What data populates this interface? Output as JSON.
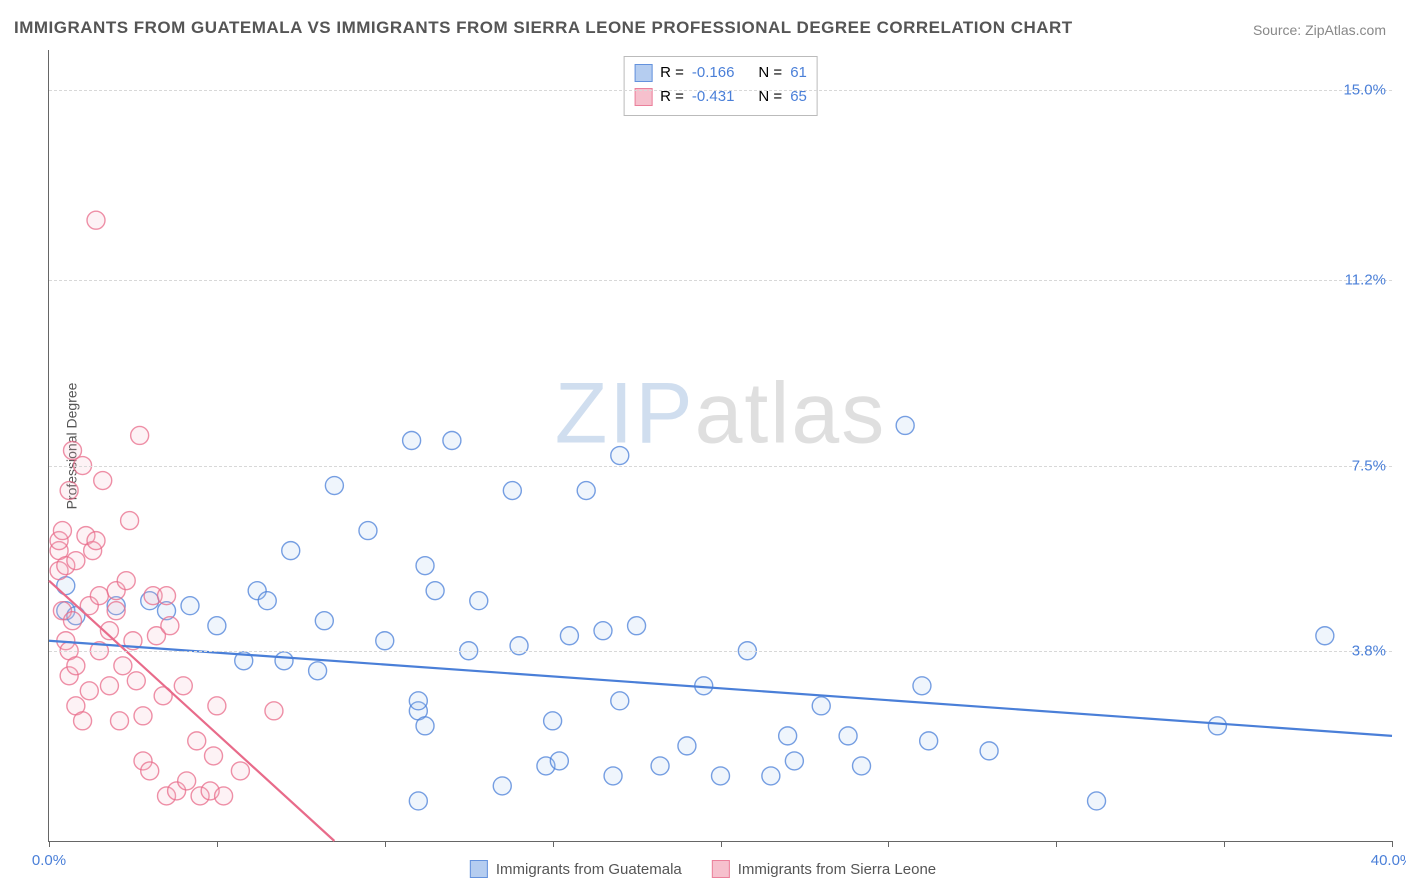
{
  "title": "IMMIGRANTS FROM GUATEMALA VS IMMIGRANTS FROM SIERRA LEONE PROFESSIONAL DEGREE CORRELATION CHART",
  "source": "Source: ZipAtlas.com",
  "ylabel": "Professional Degree",
  "watermark_zip": "ZIP",
  "watermark_atlas": "atlas",
  "chart": {
    "type": "scatter",
    "xlim": [
      0,
      40
    ],
    "ylim": [
      0,
      15.8
    ],
    "background_color": "#ffffff",
    "grid_color": "#d8d8d8",
    "axis_color": "#666666",
    "gridlines_y": [
      3.8,
      7.5,
      11.2,
      15.0
    ],
    "ytick_labels": [
      "3.8%",
      "7.5%",
      "11.2%",
      "15.0%"
    ],
    "ytick_color": "#4a7fd8",
    "xtick_positions": [
      0,
      5,
      10,
      15,
      20,
      25,
      30,
      35,
      40
    ],
    "xaxis_min_label": "0.0%",
    "xaxis_max_label": "40.0%",
    "xaxis_label_color": "#4a7fd8",
    "marker_radius": 9,
    "marker_stroke_width": 1.4,
    "marker_fill_opacity": 0.18,
    "trend_line_width": 2.2
  },
  "series": [
    {
      "name": "Immigrants from Guatemala",
      "color_stroke": "#4a7fd8",
      "color_fill": "#a9c5ee",
      "R": "-0.166",
      "N": "61",
      "trend": {
        "x1": 0,
        "y1": 4.0,
        "x2": 40,
        "y2": 2.1
      },
      "points": [
        [
          0.5,
          5.1
        ],
        [
          0.5,
          4.6
        ],
        [
          0.8,
          4.5
        ],
        [
          2.0,
          4.7
        ],
        [
          3.0,
          4.8
        ],
        [
          3.5,
          4.6
        ],
        [
          4.2,
          4.7
        ],
        [
          5.0,
          4.3
        ],
        [
          5.8,
          3.6
        ],
        [
          6.2,
          5.0
        ],
        [
          6.5,
          4.8
        ],
        [
          7.0,
          3.6
        ],
        [
          7.2,
          5.8
        ],
        [
          8.0,
          3.4
        ],
        [
          8.2,
          4.4
        ],
        [
          8.5,
          7.1
        ],
        [
          9.5,
          6.2
        ],
        [
          10.0,
          4.0
        ],
        [
          10.8,
          8.0
        ],
        [
          11.2,
          5.5
        ],
        [
          11.0,
          2.6
        ],
        [
          11.0,
          0.8
        ],
        [
          11.0,
          2.8
        ],
        [
          11.2,
          2.3
        ],
        [
          11.5,
          5.0
        ],
        [
          12.0,
          8.0
        ],
        [
          12.5,
          3.8
        ],
        [
          12.8,
          4.8
        ],
        [
          13.5,
          1.1
        ],
        [
          13.8,
          7.0
        ],
        [
          14.0,
          3.9
        ],
        [
          14.8,
          1.5
        ],
        [
          15.0,
          2.4
        ],
        [
          15.2,
          1.6
        ],
        [
          15.5,
          4.1
        ],
        [
          16.0,
          7.0
        ],
        [
          16.5,
          4.2
        ],
        [
          16.8,
          1.3
        ],
        [
          17.0,
          7.7
        ],
        [
          17.0,
          2.8
        ],
        [
          17.5,
          4.3
        ],
        [
          18.2,
          1.5
        ],
        [
          19.0,
          1.9
        ],
        [
          19.5,
          3.1
        ],
        [
          20.0,
          1.3
        ],
        [
          20.8,
          3.8
        ],
        [
          21.5,
          1.3
        ],
        [
          22.0,
          2.1
        ],
        [
          22.2,
          1.6
        ],
        [
          23.0,
          2.7
        ],
        [
          23.8,
          2.1
        ],
        [
          24.2,
          1.5
        ],
        [
          25.5,
          8.3
        ],
        [
          26.0,
          3.1
        ],
        [
          26.2,
          2.0
        ],
        [
          28.0,
          1.8
        ],
        [
          31.2,
          0.8
        ],
        [
          34.8,
          2.3
        ],
        [
          38.0,
          4.1
        ]
      ]
    },
    {
      "name": "Immigrants from Sierra Leone",
      "color_stroke": "#e86b8a",
      "color_fill": "#f5b6c5",
      "R": "-0.431",
      "N": "65",
      "trend": {
        "x1": 0,
        "y1": 5.2,
        "x2": 8.5,
        "y2": 0
      },
      "points": [
        [
          0.3,
          5.8
        ],
        [
          0.3,
          5.4
        ],
        [
          0.3,
          6.0
        ],
        [
          0.4,
          6.2
        ],
        [
          0.4,
          4.6
        ],
        [
          0.5,
          5.5
        ],
        [
          0.5,
          4.0
        ],
        [
          0.6,
          3.3
        ],
        [
          0.6,
          3.8
        ],
        [
          0.6,
          7.0
        ],
        [
          0.7,
          4.4
        ],
        [
          0.7,
          7.8
        ],
        [
          0.8,
          5.6
        ],
        [
          0.8,
          3.5
        ],
        [
          0.8,
          2.7
        ],
        [
          1.0,
          7.5
        ],
        [
          1.0,
          2.4
        ],
        [
          1.1,
          6.1
        ],
        [
          1.2,
          3.0
        ],
        [
          1.2,
          4.7
        ],
        [
          1.3,
          5.8
        ],
        [
          1.4,
          12.4
        ],
        [
          1.4,
          6.0
        ],
        [
          1.5,
          4.9
        ],
        [
          1.5,
          3.8
        ],
        [
          1.6,
          7.2
        ],
        [
          1.8,
          3.1
        ],
        [
          1.8,
          4.2
        ],
        [
          2.0,
          5.0
        ],
        [
          2.0,
          4.6
        ],
        [
          2.1,
          2.4
        ],
        [
          2.2,
          3.5
        ],
        [
          2.3,
          5.2
        ],
        [
          2.4,
          6.4
        ],
        [
          2.5,
          4.0
        ],
        [
          2.6,
          3.2
        ],
        [
          2.7,
          8.1
        ],
        [
          2.8,
          1.6
        ],
        [
          2.8,
          2.5
        ],
        [
          3.0,
          1.4
        ],
        [
          3.1,
          4.9
        ],
        [
          3.2,
          4.1
        ],
        [
          3.4,
          2.9
        ],
        [
          3.5,
          4.9
        ],
        [
          3.5,
          0.9
        ],
        [
          3.6,
          4.3
        ],
        [
          3.8,
          1.0
        ],
        [
          4.0,
          3.1
        ],
        [
          4.1,
          1.2
        ],
        [
          4.4,
          2.0
        ],
        [
          4.5,
          0.9
        ],
        [
          4.8,
          1.0
        ],
        [
          4.9,
          1.7
        ],
        [
          5.0,
          2.7
        ],
        [
          5.2,
          0.9
        ],
        [
          5.7,
          1.4
        ],
        [
          6.7,
          2.6
        ]
      ]
    }
  ],
  "legend_top": {
    "label_R": "R =",
    "label_N": "N ="
  },
  "legend_bottom": {
    "label1": "Immigrants from Guatemala",
    "label2": "Immigrants from Sierra Leone"
  }
}
